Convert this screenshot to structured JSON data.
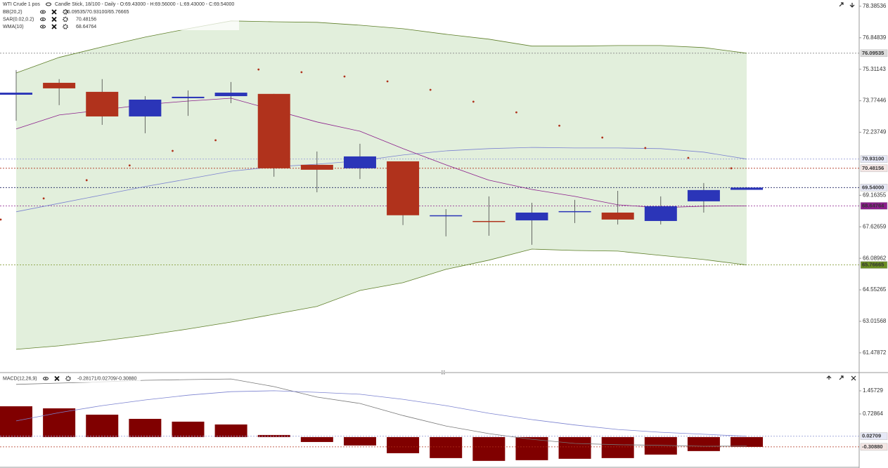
{
  "chart_data": [
    {
      "type": "candlestick",
      "title": "WTI Crude 1 pos",
      "subtitle": "Candle Stick, 18/100 - Daily - O:69.43000 - H:69.56000 - L:69.43000 - C:69.54000",
      "open": [
        74.07,
        74.65,
        74.21,
        73.01,
        73.9,
        74.0,
        74.11,
        70.65,
        70.48,
        70.82,
        68.16,
        67.91,
        67.94,
        68.36,
        68.32,
        67.91,
        68.87,
        69.43
      ],
      "high": [
        75.27,
        74.83,
        74.83,
        74.0,
        74.28,
        74.69,
        74.11,
        71.3,
        71.68,
        70.82,
        68.49,
        69.11,
        68.8,
        68.94,
        69.38,
        69.11,
        69.76,
        69.56
      ],
      "low": [
        72.8,
        73.56,
        72.6,
        72.19,
        73.04,
        73.66,
        70.07,
        69.31,
        69.96,
        67.71,
        67.16,
        67.19,
        66.75,
        67.81,
        67.74,
        67.74,
        68.32,
        69.43
      ],
      "close": [
        74.17,
        74.38,
        73.01,
        73.83,
        73.97,
        74.17,
        70.48,
        70.41,
        71.06,
        68.19,
        68.19,
        67.88,
        68.32,
        68.39,
        67.98,
        68.63,
        69.42,
        69.54
      ],
      "close_label": "69.54000",
      "up_color": "#2b35b8",
      "down_color": "#b0321c",
      "ylim": [
        60.55,
        78.69
      ],
      "yticks": [
        78.38536,
        76.84839,
        75.31143,
        73.77446,
        72.23749,
        69.16355,
        67.62659,
        66.08962,
        64.55265,
        63.01568,
        61.47872
      ],
      "overlays": [
        {
          "name": "BB(20,2)",
          "legend_value": "76.09535/70.93100/65.76665",
          "legend_color": "#7a7fb0",
          "style": "band",
          "fill": "#e2efdc",
          "lines": [
            {
              "color": "#5f7f2a",
              "values": [
                75.13,
                75.89,
                76.4,
                76.88,
                77.29,
                77.67,
                77.63,
                77.6,
                77.46,
                77.29,
                77.02,
                76.78,
                76.44,
                76.44,
                76.47,
                76.47,
                76.37,
                76.09535
              ],
              "value_label": "76.09535",
              "tag_bg": "#dcdcdc",
              "tag_fg": "#333333",
              "dash_color": "#888888"
            },
            {
              "color": "#7b82d0",
              "values": [
                68.36,
                68.77,
                69.18,
                69.59,
                69.96,
                70.34,
                70.55,
                70.68,
                70.85,
                71.13,
                71.33,
                71.44,
                71.5,
                71.47,
                71.47,
                71.44,
                71.27,
                70.931
              ],
              "value_label": "70.93100",
              "tag_bg": "#e6e8f6",
              "tag_fg": "#2b35b8",
              "dash_color": "#9aa0d8"
            },
            {
              "color": "#5f7f2a",
              "values": [
                61.65,
                61.82,
                62.06,
                62.33,
                62.64,
                62.98,
                63.36,
                63.74,
                64.52,
                64.9,
                65.55,
                66.0,
                66.54,
                66.47,
                66.44,
                66.23,
                66.03,
                65.76665
              ],
              "value_label": "65.76665",
              "tag_bg": "#6b8e23",
              "tag_fg": "#ffffff",
              "dash_color": "#8aa040"
            }
          ]
        },
        {
          "name": "SAR(0.02,0.2)",
          "legend_value": "70.48156",
          "legend_color": "#b0321c",
          "style": "dots",
          "lines": [
            {
              "color": "#b0321c",
              "values": [
                67.98,
                69.01,
                69.9,
                70.62,
                71.33,
                71.85,
                75.3,
                75.17,
                74.96,
                74.72,
                74.31,
                73.73,
                73.21,
                72.56,
                71.98,
                71.47,
                70.99,
                70.48156
              ],
              "value_label": "70.48156",
              "tag_bg": "#f4e6e4",
              "tag_fg": "#b0321c",
              "dash_color": "#b0321c"
            }
          ]
        },
        {
          "name": "WMA(10)",
          "legend_value": "68.64764",
          "legend_color": "#8b1e8b",
          "style": "line",
          "lines": [
            {
              "color": "#8b1e8b",
              "values": [
                72.4,
                73.08,
                73.32,
                73.59,
                73.76,
                73.9,
                73.32,
                72.74,
                72.29,
                71.44,
                70.65,
                69.9,
                69.45,
                69.11,
                68.7,
                68.56,
                68.63,
                68.64764
              ],
              "value_label": "68.64764",
              "tag_bg": "#8b1e8b",
              "tag_fg": "#ffffff",
              "dash_color": "#8b1e8b"
            }
          ]
        }
      ]
    },
    {
      "type": "macd",
      "title": "MACD(12,26,9)",
      "legend_value": "-0.28171/0.02709/-0.30880",
      "legend_color": "#7b82d0",
      "histogram": {
        "color": "#800000",
        "values": [
          0.97,
          0.905,
          0.706,
          0.574,
          0.486,
          0.397,
          0.066,
          -0.155,
          -0.265,
          -0.508,
          -0.662,
          -0.75,
          -0.728,
          -0.684,
          -0.662,
          -0.552,
          -0.441,
          -0.3088
        ],
        "value_label": "-0.30880",
        "tag_bg": "#f4e6e4",
        "tag_fg": "#800000",
        "dash_color": "#b0321c"
      },
      "lines": [
        {
          "color": "#777777",
          "values": [
            1.66,
            1.7,
            1.74,
            1.79,
            1.81,
            1.83,
            1.59,
            1.26,
            1.06,
            0.68,
            0.35,
            0.11,
            -0.07,
            -0.2,
            -0.24,
            -0.26,
            -0.29,
            -0.28171
          ]
        },
        {
          "color": "#7b82d0",
          "values": [
            0.51,
            0.77,
            0.99,
            1.17,
            1.32,
            1.43,
            1.46,
            1.41,
            1.35,
            1.19,
            0.99,
            0.75,
            0.55,
            0.38,
            0.24,
            0.15,
            0.09,
            0.02709
          ],
          "value_label": "0.02709",
          "tag_bg": "#e6e8f6",
          "tag_fg": "#2b35b8",
          "dash_color": "#9aa0d8"
        }
      ],
      "ylim": [
        -0.93,
        2.01
      ],
      "yticks": [
        1.45729,
        0.72864
      ]
    }
  ]
}
